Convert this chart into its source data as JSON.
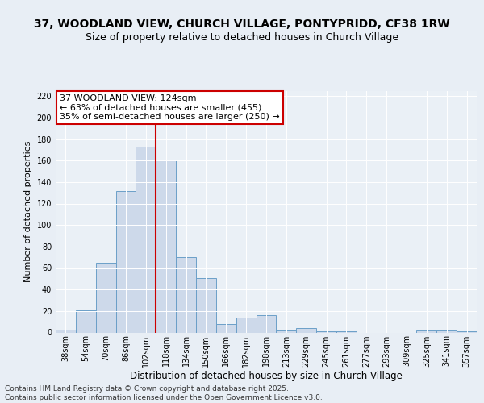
{
  "title": "37, WOODLAND VIEW, CHURCH VILLAGE, PONTYPRIDD, CF38 1RW",
  "subtitle": "Size of property relative to detached houses in Church Village",
  "xlabel": "Distribution of detached houses by size in Church Village",
  "ylabel": "Number of detached properties",
  "categories": [
    "38sqm",
    "54sqm",
    "70sqm",
    "86sqm",
    "102sqm",
    "118sqm",
    "134sqm",
    "150sqm",
    "166sqm",
    "182sqm",
    "198sqm",
    "213sqm",
    "229sqm",
    "245sqm",
    "261sqm",
    "277sqm",
    "293sqm",
    "309sqm",
    "325sqm",
    "341sqm",
    "357sqm"
  ],
  "values": [
    3,
    21,
    65,
    132,
    173,
    161,
    70,
    51,
    8,
    14,
    16,
    2,
    4,
    1,
    1,
    0,
    0,
    0,
    2,
    2,
    1
  ],
  "bar_color": "#cdd9ea",
  "bar_edge_color": "#6b9fc8",
  "vline_x": 4.5,
  "vline_color": "#cc0000",
  "annotation_box_text": "37 WOODLAND VIEW: 124sqm\n← 63% of detached houses are smaller (455)\n35% of semi-detached houses are larger (250) →",
  "annotation_box_color": "#cc0000",
  "annotation_box_facecolor": "white",
  "ylim": [
    0,
    225
  ],
  "yticks": [
    0,
    20,
    40,
    60,
    80,
    100,
    120,
    140,
    160,
    180,
    200,
    220
  ],
  "bg_color": "#e8eef5",
  "plot_bg_color": "#eaf0f6",
  "footer": "Contains HM Land Registry data © Crown copyright and database right 2025.\nContains public sector information licensed under the Open Government Licence v3.0.",
  "title_fontsize": 10,
  "subtitle_fontsize": 9,
  "xlabel_fontsize": 8.5,
  "ylabel_fontsize": 8,
  "tick_fontsize": 7,
  "annotation_fontsize": 8,
  "footer_fontsize": 6.5
}
